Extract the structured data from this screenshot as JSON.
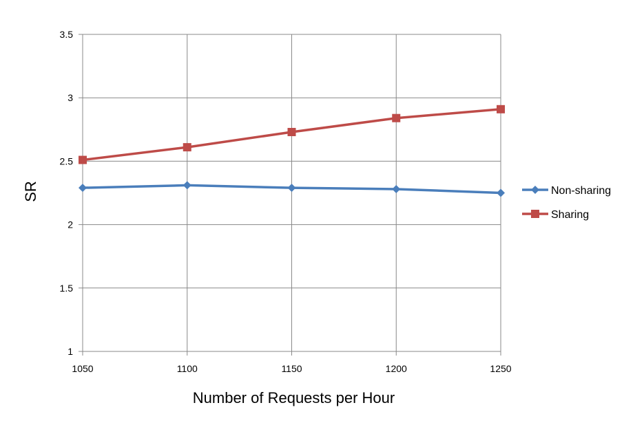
{
  "chart_data": {
    "type": "line",
    "title": "",
    "xlabel": "Number of Requests per Hour",
    "ylabel": "SR",
    "x": [
      1050,
      1100,
      1150,
      1200,
      1250
    ],
    "x_tick_labels": [
      "1050",
      "1100",
      "1150",
      "1200",
      "1250"
    ],
    "y_tick_labels": [
      "1",
      "1.5",
      "2",
      "2.5",
      "3",
      "3.5"
    ],
    "ylim": [
      1,
      3.5
    ],
    "ytick_step": 0.5,
    "grid": true,
    "legend_position": "right",
    "series": [
      {
        "name": "Non-sharing",
        "color": "#4a7ebb",
        "marker": "diamond",
        "values": [
          2.29,
          2.31,
          2.29,
          2.28,
          2.25
        ]
      },
      {
        "name": "Sharing",
        "color": "#be4b48",
        "marker": "square",
        "values": [
          2.51,
          2.61,
          2.73,
          2.84,
          2.91
        ]
      }
    ]
  }
}
